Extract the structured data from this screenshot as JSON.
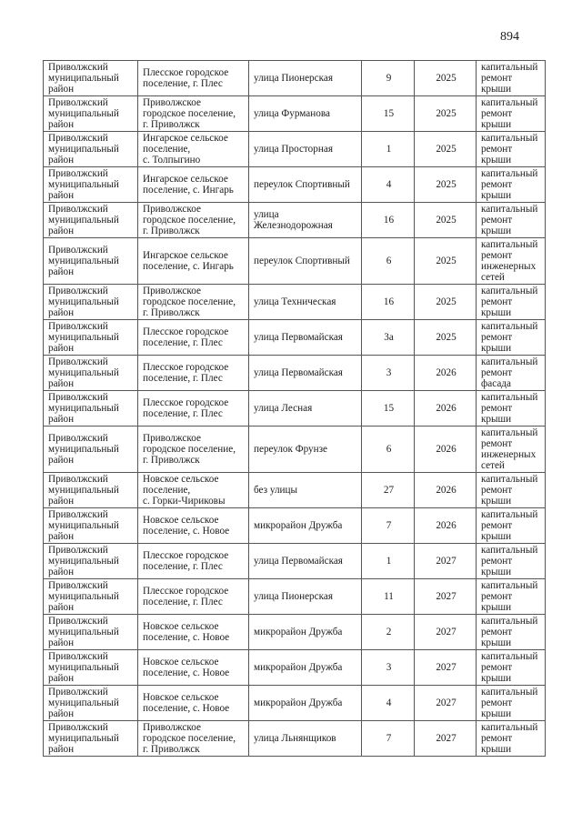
{
  "page": {
    "number": "894"
  },
  "table": {
    "rows": [
      {
        "district": "Приволжский\nмуниципальный\nрайон",
        "settlement": "Плесское городское\nпоселение, г. Плес",
        "street": "улица Пионерская",
        "house": "9",
        "year": "2025",
        "work": "капитальный\nремонт крыши"
      },
      {
        "district": "Приволжский\nмуниципальный\nрайон",
        "settlement": "Приволжское\nгородское поселение,\nг. Приволжск",
        "street": "улица Фурманова",
        "house": "15",
        "year": "2025",
        "work": "капитальный\nремонт крыши"
      },
      {
        "district": "Приволжский\nмуниципальный\nрайон",
        "settlement": "Ингарское сельское\nпоселение,\nс. Толпыгино",
        "street": "улица Просторная",
        "house": "1",
        "year": "2025",
        "work": "капитальный\nремонт крыши"
      },
      {
        "district": "Приволжский\nмуниципальный\nрайон",
        "settlement": "Ингарское сельское\nпоселение, с. Ингарь",
        "street": "переулок Спортивный",
        "house": "4",
        "year": "2025",
        "work": "капитальный\nремонт крыши"
      },
      {
        "district": "Приволжский\nмуниципальный\nрайон",
        "settlement": "Приволжское\nгородское поселение,\nг. Приволжск",
        "street": "улица\nЖелезнодорожная",
        "house": "16",
        "year": "2025",
        "work": "капитальный\nремонт крыши"
      },
      {
        "district": "Приволжский\nмуниципальный\nрайон",
        "settlement": "Ингарское сельское\nпоселение, с. Ингарь",
        "street": "переулок Спортивный",
        "house": "6",
        "year": "2025",
        "work": "капитальный\nремонт\nинженерных\nсетей"
      },
      {
        "district": "Приволжский\nмуниципальный\nрайон",
        "settlement": "Приволжское\nгородское поселение,\nг. Приволжск",
        "street": "улица Техническая",
        "house": "16",
        "year": "2025",
        "work": "капитальный\nремонт крыши"
      },
      {
        "district": "Приволжский\nмуниципальный\nрайон",
        "settlement": "Плесское городское\nпоселение, г. Плес",
        "street": "улица Первомайская",
        "house": "3а",
        "year": "2025",
        "work": "капитальный\nремонт крыши"
      },
      {
        "district": "Приволжский\nмуниципальный\nрайон",
        "settlement": "Плесское городское\nпоселение, г. Плес",
        "street": "улица Первомайская",
        "house": "3",
        "year": "2026",
        "work": "капитальный\nремонт фасада"
      },
      {
        "district": "Приволжский\nмуниципальный\nрайон",
        "settlement": "Плесское городское\nпоселение, г. Плес",
        "street": "улица Лесная",
        "house": "15",
        "year": "2026",
        "work": "капитальный\nремонт крыши"
      },
      {
        "district": "Приволжский\nмуниципальный\nрайон",
        "settlement": "Приволжское\nгородское поселение,\nг. Приволжск",
        "street": "переулок Фрунзе",
        "house": "6",
        "year": "2026",
        "work": "капитальный\nремонт\nинженерных\nсетей"
      },
      {
        "district": "Приволжский\nмуниципальный\nрайон",
        "settlement": "Новское сельское\nпоселение,\nс. Горки-Чириковы",
        "street": "без улицы",
        "house": "27",
        "year": "2026",
        "work": "капитальный\nремонт крыши"
      },
      {
        "district": "Приволжский\nмуниципальный\nрайон",
        "settlement": "Новское сельское\nпоселение, с. Новое",
        "street": "микрорайон Дружба",
        "house": "7",
        "year": "2026",
        "work": "капитальный\nремонт крыши"
      },
      {
        "district": "Приволжский\nмуниципальный\nрайон",
        "settlement": "Плесское городское\nпоселение, г. Плес",
        "street": "улица Первомайская",
        "house": "1",
        "year": "2027",
        "work": "капитальный\nремонт крыши"
      },
      {
        "district": "Приволжский\nмуниципальный\nрайон",
        "settlement": "Плесское городское\nпоселение, г. Плес",
        "street": "улица Пионерская",
        "house": "11",
        "year": "2027",
        "work": "капитальный\nремонт крыши"
      },
      {
        "district": "Приволжский\nмуниципальный\nрайон",
        "settlement": "Новское сельское\nпоселение, с. Новое",
        "street": "микрорайон Дружба",
        "house": "2",
        "year": "2027",
        "work": "капитальный\nремонт крыши"
      },
      {
        "district": "Приволжский\nмуниципальный\nрайон",
        "settlement": "Новское сельское\nпоселение, с. Новое",
        "street": "микрорайон Дружба",
        "house": "3",
        "year": "2027",
        "work": "капитальный\nремонт крыши"
      },
      {
        "district": "Приволжский\nмуниципальный\nрайон",
        "settlement": "Новское сельское\nпоселение, с. Новое",
        "street": "микрорайон Дружба",
        "house": "4",
        "year": "2027",
        "work": "капитальный\nремонт крыши"
      },
      {
        "district": "Приволжский\nмуниципальный\nрайон",
        "settlement": "Приволжское\nгородское поселение,\nг. Приволжск",
        "street": "улица Льнянщиков",
        "house": "7",
        "year": "2027",
        "work": "капитальный\nремонт крыши"
      }
    ]
  }
}
